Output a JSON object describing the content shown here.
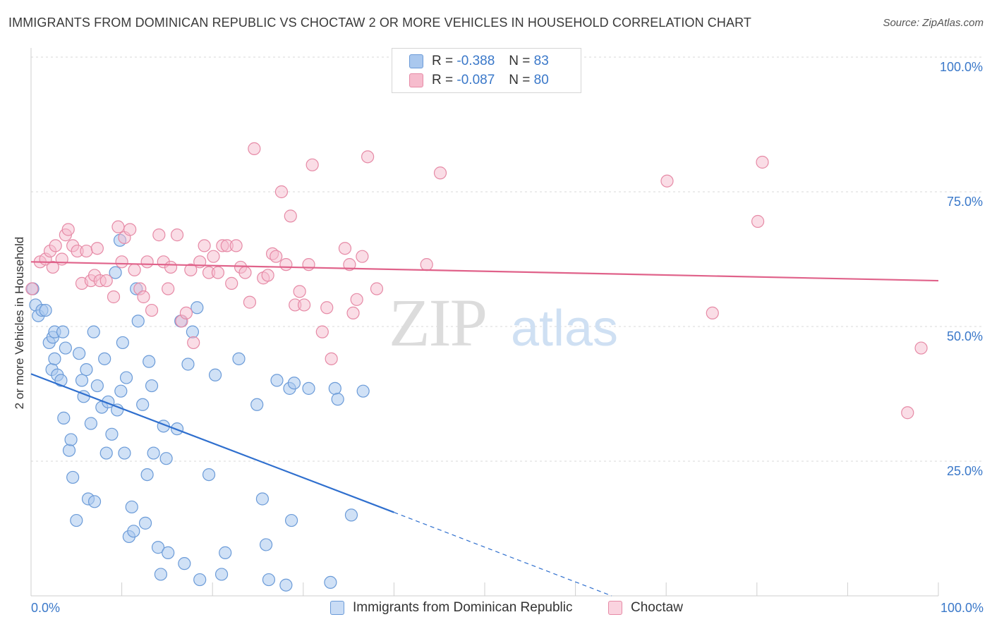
{
  "header": {
    "title": "IMMIGRANTS FROM DOMINICAN REPUBLIC VS CHOCTAW 2 OR MORE VEHICLES IN HOUSEHOLD CORRELATION CHART",
    "source": "Source: ZipAtlas.com"
  },
  "watermark": {
    "zip": "ZIP",
    "atlas": "atlas"
  },
  "legend": {
    "series1": {
      "r_label": "R =",
      "r_value": "-0.388",
      "n_label": "N =",
      "n_value": "83"
    },
    "series2": {
      "r_label": "R =",
      "r_value": "-0.087",
      "n_label": "N =",
      "n_value": "80"
    }
  },
  "colors": {
    "blue_fill": "#aac8ee",
    "blue_stroke": "#6b9bd8",
    "blue_line": "#2f6fce",
    "pink_fill": "#f6bccd",
    "pink_stroke": "#e68aa6",
    "pink_line": "#e0628a",
    "tick_label": "#3a78c9",
    "grid": "#d8d8d8"
  },
  "chart_data": {
    "type": "scatter",
    "title": "IMMIGRANTS FROM DOMINICAN REPUBLIC VS CHOCTAW 2 OR MORE VEHICLES IN HOUSEHOLD CORRELATION CHART",
    "xlabel": "",
    "ylabel": "2 or more Vehicles in Household",
    "xlim": [
      0,
      100
    ],
    "ylim": [
      0,
      100
    ],
    "x_tick_labels": [
      "0.0%",
      "100.0%"
    ],
    "y_tick_labels": [
      "25.0%",
      "50.0%",
      "75.0%",
      "100.0%"
    ],
    "y_ticks": [
      25,
      50,
      75,
      100
    ],
    "grid": "horizontal dashed",
    "legend_position": "bottom",
    "series": [
      {
        "name": "Immigrants from Dominican Republic",
        "color": "#aac8ee",
        "trend": {
          "x0": 0,
          "y0": 41.2,
          "x1": 40,
          "y1": 15.5,
          "dashed_to_x": 64,
          "dashed_to_y": 0
        },
        "points": [
          [
            0.2,
            57
          ],
          [
            0.5,
            54
          ],
          [
            0.8,
            52
          ],
          [
            1.2,
            53
          ],
          [
            1.6,
            53
          ],
          [
            2.0,
            47
          ],
          [
            2.4,
            48
          ],
          [
            2.6,
            49
          ],
          [
            2.3,
            42
          ],
          [
            2.6,
            44
          ],
          [
            2.9,
            41
          ],
          [
            3.3,
            40
          ],
          [
            3.5,
            49
          ],
          [
            3.8,
            46
          ],
          [
            3.6,
            33
          ],
          [
            4.2,
            27
          ],
          [
            4.4,
            29
          ],
          [
            4.6,
            22
          ],
          [
            5.3,
            45
          ],
          [
            5.6,
            40
          ],
          [
            5.8,
            37
          ],
          [
            6.1,
            42
          ],
          [
            6.3,
            18
          ],
          [
            6.6,
            32
          ],
          [
            5.0,
            14
          ],
          [
            6.9,
            49
          ],
          [
            7.0,
            17.5
          ],
          [
            7.3,
            39
          ],
          [
            7.8,
            35
          ],
          [
            8.1,
            44
          ],
          [
            8.3,
            26.5
          ],
          [
            8.5,
            36
          ],
          [
            8.9,
            30
          ],
          [
            9.3,
            60
          ],
          [
            9.5,
            34.5
          ],
          [
            9.8,
            66
          ],
          [
            9.9,
            38
          ],
          [
            10.1,
            47
          ],
          [
            10.3,
            26.5
          ],
          [
            10.5,
            40.5
          ],
          [
            10.8,
            11
          ],
          [
            11.1,
            16.5
          ],
          [
            11.3,
            12
          ],
          [
            11.6,
            57
          ],
          [
            11.8,
            51
          ],
          [
            12.3,
            35.5
          ],
          [
            12.6,
            13.5
          ],
          [
            12.8,
            22.5
          ],
          [
            13.0,
            43.5
          ],
          [
            13.3,
            39
          ],
          [
            13.5,
            26.5
          ],
          [
            14.0,
            9
          ],
          [
            14.3,
            4
          ],
          [
            14.6,
            31.5
          ],
          [
            14.9,
            25.5
          ],
          [
            15.1,
            8
          ],
          [
            16.1,
            31
          ],
          [
            16.5,
            51
          ],
          [
            16.9,
            6
          ],
          [
            17.3,
            43
          ],
          [
            17.8,
            49
          ],
          [
            18.3,
            53.5
          ],
          [
            18.6,
            3
          ],
          [
            19.6,
            22.5
          ],
          [
            20.3,
            41
          ],
          [
            21.0,
            4
          ],
          [
            21.4,
            8
          ],
          [
            22.9,
            44
          ],
          [
            24.9,
            35.5
          ],
          [
            25.5,
            18
          ],
          [
            25.9,
            9.5
          ],
          [
            26.2,
            3
          ],
          [
            27.1,
            40
          ],
          [
            28.1,
            2
          ],
          [
            28.5,
            38.5
          ],
          [
            28.7,
            14
          ],
          [
            29.0,
            39.5
          ],
          [
            30.6,
            38.5
          ],
          [
            33.0,
            2.5
          ],
          [
            33.5,
            38.5
          ],
          [
            33.8,
            36.5
          ],
          [
            35.3,
            15
          ],
          [
            36.6,
            38
          ]
        ]
      },
      {
        "name": "Choctaw",
        "color": "#f6bccd",
        "trend": {
          "x0": 0,
          "y0": 62,
          "x1": 100,
          "y1": 58.5
        },
        "points": [
          [
            0.1,
            57
          ],
          [
            1.0,
            62
          ],
          [
            1.6,
            62.5
          ],
          [
            2.1,
            64
          ],
          [
            2.4,
            61
          ],
          [
            2.7,
            65
          ],
          [
            3.4,
            62.5
          ],
          [
            3.8,
            67
          ],
          [
            4.1,
            68
          ],
          [
            4.6,
            65
          ],
          [
            5.1,
            64
          ],
          [
            5.6,
            58
          ],
          [
            6.1,
            64
          ],
          [
            6.6,
            58.5
          ],
          [
            7.0,
            59.5
          ],
          [
            7.3,
            64.5
          ],
          [
            7.6,
            58.5
          ],
          [
            8.3,
            58.5
          ],
          [
            9.1,
            55.5
          ],
          [
            9.6,
            68.5
          ],
          [
            10.0,
            62
          ],
          [
            10.3,
            66.5
          ],
          [
            10.9,
            68
          ],
          [
            11.4,
            60.5
          ],
          [
            12.0,
            57
          ],
          [
            12.4,
            55.5
          ],
          [
            12.8,
            62
          ],
          [
            13.3,
            53
          ],
          [
            14.1,
            67
          ],
          [
            14.6,
            62
          ],
          [
            15.1,
            57
          ],
          [
            15.4,
            61
          ],
          [
            16.1,
            67
          ],
          [
            16.6,
            51
          ],
          [
            17.1,
            52.5
          ],
          [
            17.6,
            60.5
          ],
          [
            17.9,
            47
          ],
          [
            18.6,
            62
          ],
          [
            19.1,
            65
          ],
          [
            19.6,
            60
          ],
          [
            20.1,
            63
          ],
          [
            20.6,
            60
          ],
          [
            21.1,
            65
          ],
          [
            21.6,
            65
          ],
          [
            22.1,
            58
          ],
          [
            22.6,
            65
          ],
          [
            23.1,
            61
          ],
          [
            23.6,
            60
          ],
          [
            24.1,
            54.5
          ],
          [
            24.6,
            83
          ],
          [
            25.6,
            59
          ],
          [
            26.1,
            59.5
          ],
          [
            26.6,
            63.5
          ],
          [
            27.0,
            63
          ],
          [
            27.6,
            75
          ],
          [
            28.1,
            61.5
          ],
          [
            28.6,
            70.5
          ],
          [
            29.1,
            54
          ],
          [
            29.6,
            56.5
          ],
          [
            30.1,
            54
          ],
          [
            30.6,
            61.5
          ],
          [
            31.0,
            80
          ],
          [
            32.1,
            49
          ],
          [
            32.6,
            53.5
          ],
          [
            33.1,
            44
          ],
          [
            34.6,
            64.5
          ],
          [
            35.1,
            61.5
          ],
          [
            35.5,
            52.5
          ],
          [
            35.9,
            55
          ],
          [
            36.5,
            63
          ],
          [
            37.1,
            81.5
          ],
          [
            38.1,
            57
          ],
          [
            43.6,
            61.5
          ],
          [
            45.1,
            78.5
          ],
          [
            70.1,
            77
          ],
          [
            75.1,
            52.5
          ],
          [
            80.1,
            69.5
          ],
          [
            80.6,
            80.5
          ],
          [
            96.6,
            34
          ],
          [
            98.1,
            46
          ]
        ]
      }
    ]
  },
  "bottom_legend": {
    "item1": "Immigrants from Dominican Republic",
    "item2": "Choctaw"
  }
}
